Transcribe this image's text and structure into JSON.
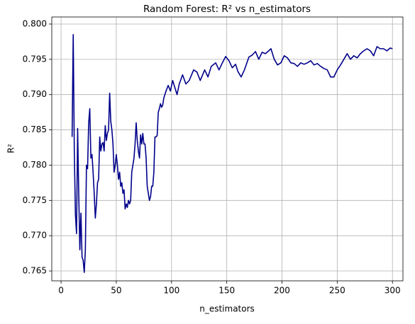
{
  "chart_data": {
    "type": "line",
    "title": "Random Forest: R² vs n_estimators",
    "x_label": "n_estimators",
    "y_label": "R²",
    "xlim": [
      -8.4,
      309.5
    ],
    "ylim": [
      0.7636,
      0.801
    ],
    "xticks": [
      0,
      50,
      100,
      150,
      200,
      250,
      300
    ],
    "yticks": [
      0.765,
      {
        "value": 0.77,
        "label": "0.770"
      },
      0.775,
      {
        "value": 0.78,
        "label": "0.780"
      },
      0.785,
      {
        "value": 0.79,
        "label": "0.790"
      },
      0.795,
      {
        "value": 0.8,
        "label": "0.800"
      }
    ],
    "grid": true,
    "series": [
      {
        "name": "R²",
        "color": "#00008b",
        "x": [
          10,
          11,
          12,
          13,
          14,
          15,
          16,
          17,
          18,
          19,
          20,
          21,
          22,
          23,
          24,
          25,
          26,
          27,
          28,
          29,
          30,
          31,
          32,
          33,
          34,
          35,
          36,
          37,
          38,
          39,
          40,
          41,
          42,
          43,
          44,
          45,
          46,
          47,
          48,
          49,
          50,
          51,
          52,
          53,
          54,
          55,
          56,
          57,
          58,
          59,
          60,
          61,
          62,
          63,
          64,
          65,
          66,
          67,
          68,
          69,
          70,
          71,
          72,
          73,
          74,
          75,
          76,
          77,
          78,
          79,
          80,
          81,
          82,
          83,
          84,
          85,
          86,
          87,
          88,
          89,
          90,
          91,
          92,
          93,
          95,
          97,
          99,
          101,
          103,
          105,
          107,
          110,
          113,
          116,
          120,
          123,
          126,
          130,
          133,
          136,
          140,
          143,
          146,
          149,
          152,
          155,
          158,
          160,
          163,
          166,
          170,
          173,
          176,
          179,
          182,
          185,
          188,
          190,
          193,
          196,
          199,
          202,
          205,
          208,
          211,
          214,
          217,
          220,
          223,
          226,
          229,
          232,
          235,
          238,
          241,
          244,
          247,
          250,
          253,
          256,
          259,
          262,
          265,
          268,
          271,
          274,
          277,
          280,
          283,
          286,
          289,
          292,
          295,
          298,
          300
        ],
        "values": [
          0.784,
          0.7985,
          0.782,
          0.773,
          0.7703,
          0.7852,
          0.776,
          0.768,
          0.7732,
          0.767,
          0.7665,
          0.7648,
          0.768,
          0.78,
          0.7795,
          0.786,
          0.788,
          0.781,
          0.7815,
          0.779,
          0.776,
          0.7725,
          0.7745,
          0.7775,
          0.778,
          0.784,
          0.782,
          0.783,
          0.7832,
          0.782,
          0.7856,
          0.7835,
          0.7845,
          0.785,
          0.7902,
          0.7862,
          0.785,
          0.783,
          0.779,
          0.78,
          0.7815,
          0.78,
          0.778,
          0.779,
          0.777,
          0.7775,
          0.776,
          0.7765,
          0.7738,
          0.7745,
          0.774,
          0.775,
          0.7745,
          0.775,
          0.779,
          0.78,
          0.781,
          0.783,
          0.786,
          0.7835,
          0.782,
          0.781,
          0.7843,
          0.783,
          0.7845,
          0.783,
          0.783,
          0.781,
          0.777,
          0.776,
          0.775,
          0.7755,
          0.777,
          0.777,
          0.779,
          0.784,
          0.784,
          0.7842,
          0.7875,
          0.788,
          0.7887,
          0.7882,
          0.7885,
          0.7895,
          0.7905,
          0.7913,
          0.7905,
          0.792,
          0.791,
          0.79,
          0.7915,
          0.7928,
          0.7915,
          0.792,
          0.7935,
          0.7932,
          0.792,
          0.7935,
          0.7925,
          0.794,
          0.7945,
          0.7935,
          0.7945,
          0.7954,
          0.7948,
          0.7938,
          0.7943,
          0.7933,
          0.7925,
          0.7935,
          0.7953,
          0.7956,
          0.7961,
          0.795,
          0.796,
          0.7958,
          0.7962,
          0.7965,
          0.795,
          0.7942,
          0.7945,
          0.7955,
          0.7952,
          0.7945,
          0.7944,
          0.794,
          0.7945,
          0.7943,
          0.7945,
          0.7948,
          0.7942,
          0.7944,
          0.794,
          0.7937,
          0.7935,
          0.7925,
          0.7925,
          0.7935,
          0.7942,
          0.795,
          0.7958,
          0.795,
          0.7955,
          0.7952,
          0.7958,
          0.7962,
          0.7965,
          0.7962,
          0.7955,
          0.7968,
          0.7965,
          0.7965,
          0.7962,
          0.7966,
          0.7965
        ]
      }
    ]
  }
}
